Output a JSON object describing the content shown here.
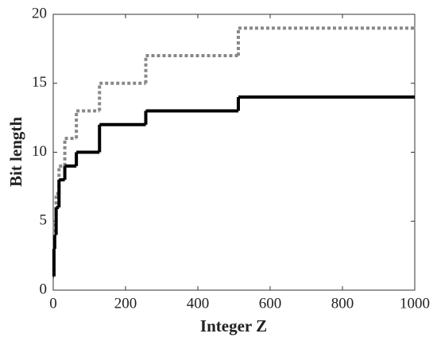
{
  "chart_data": {
    "type": "step",
    "x_label": "Integer Z",
    "y_label": "Bit length",
    "x": [
      1,
      2,
      4,
      8,
      16,
      32,
      64,
      128,
      256,
      512,
      1000
    ],
    "series": [
      {
        "color": "#888888",
        "style": "dotted",
        "values": [
          1,
          3,
          5,
          7,
          9,
          11,
          13,
          15,
          17,
          19,
          19
        ]
      },
      {
        "color": "#000000",
        "style": "solid",
        "values": [
          1,
          3,
          4,
          6,
          8,
          9,
          10,
          12,
          13,
          14,
          14
        ]
      }
    ],
    "xlim": [
      0,
      1000
    ],
    "xticks": [
      0,
      200,
      400,
      600,
      800,
      1000
    ],
    "ylim": [
      0,
      20
    ],
    "yticks": [
      0,
      5,
      10,
      15,
      20
    ]
  }
}
